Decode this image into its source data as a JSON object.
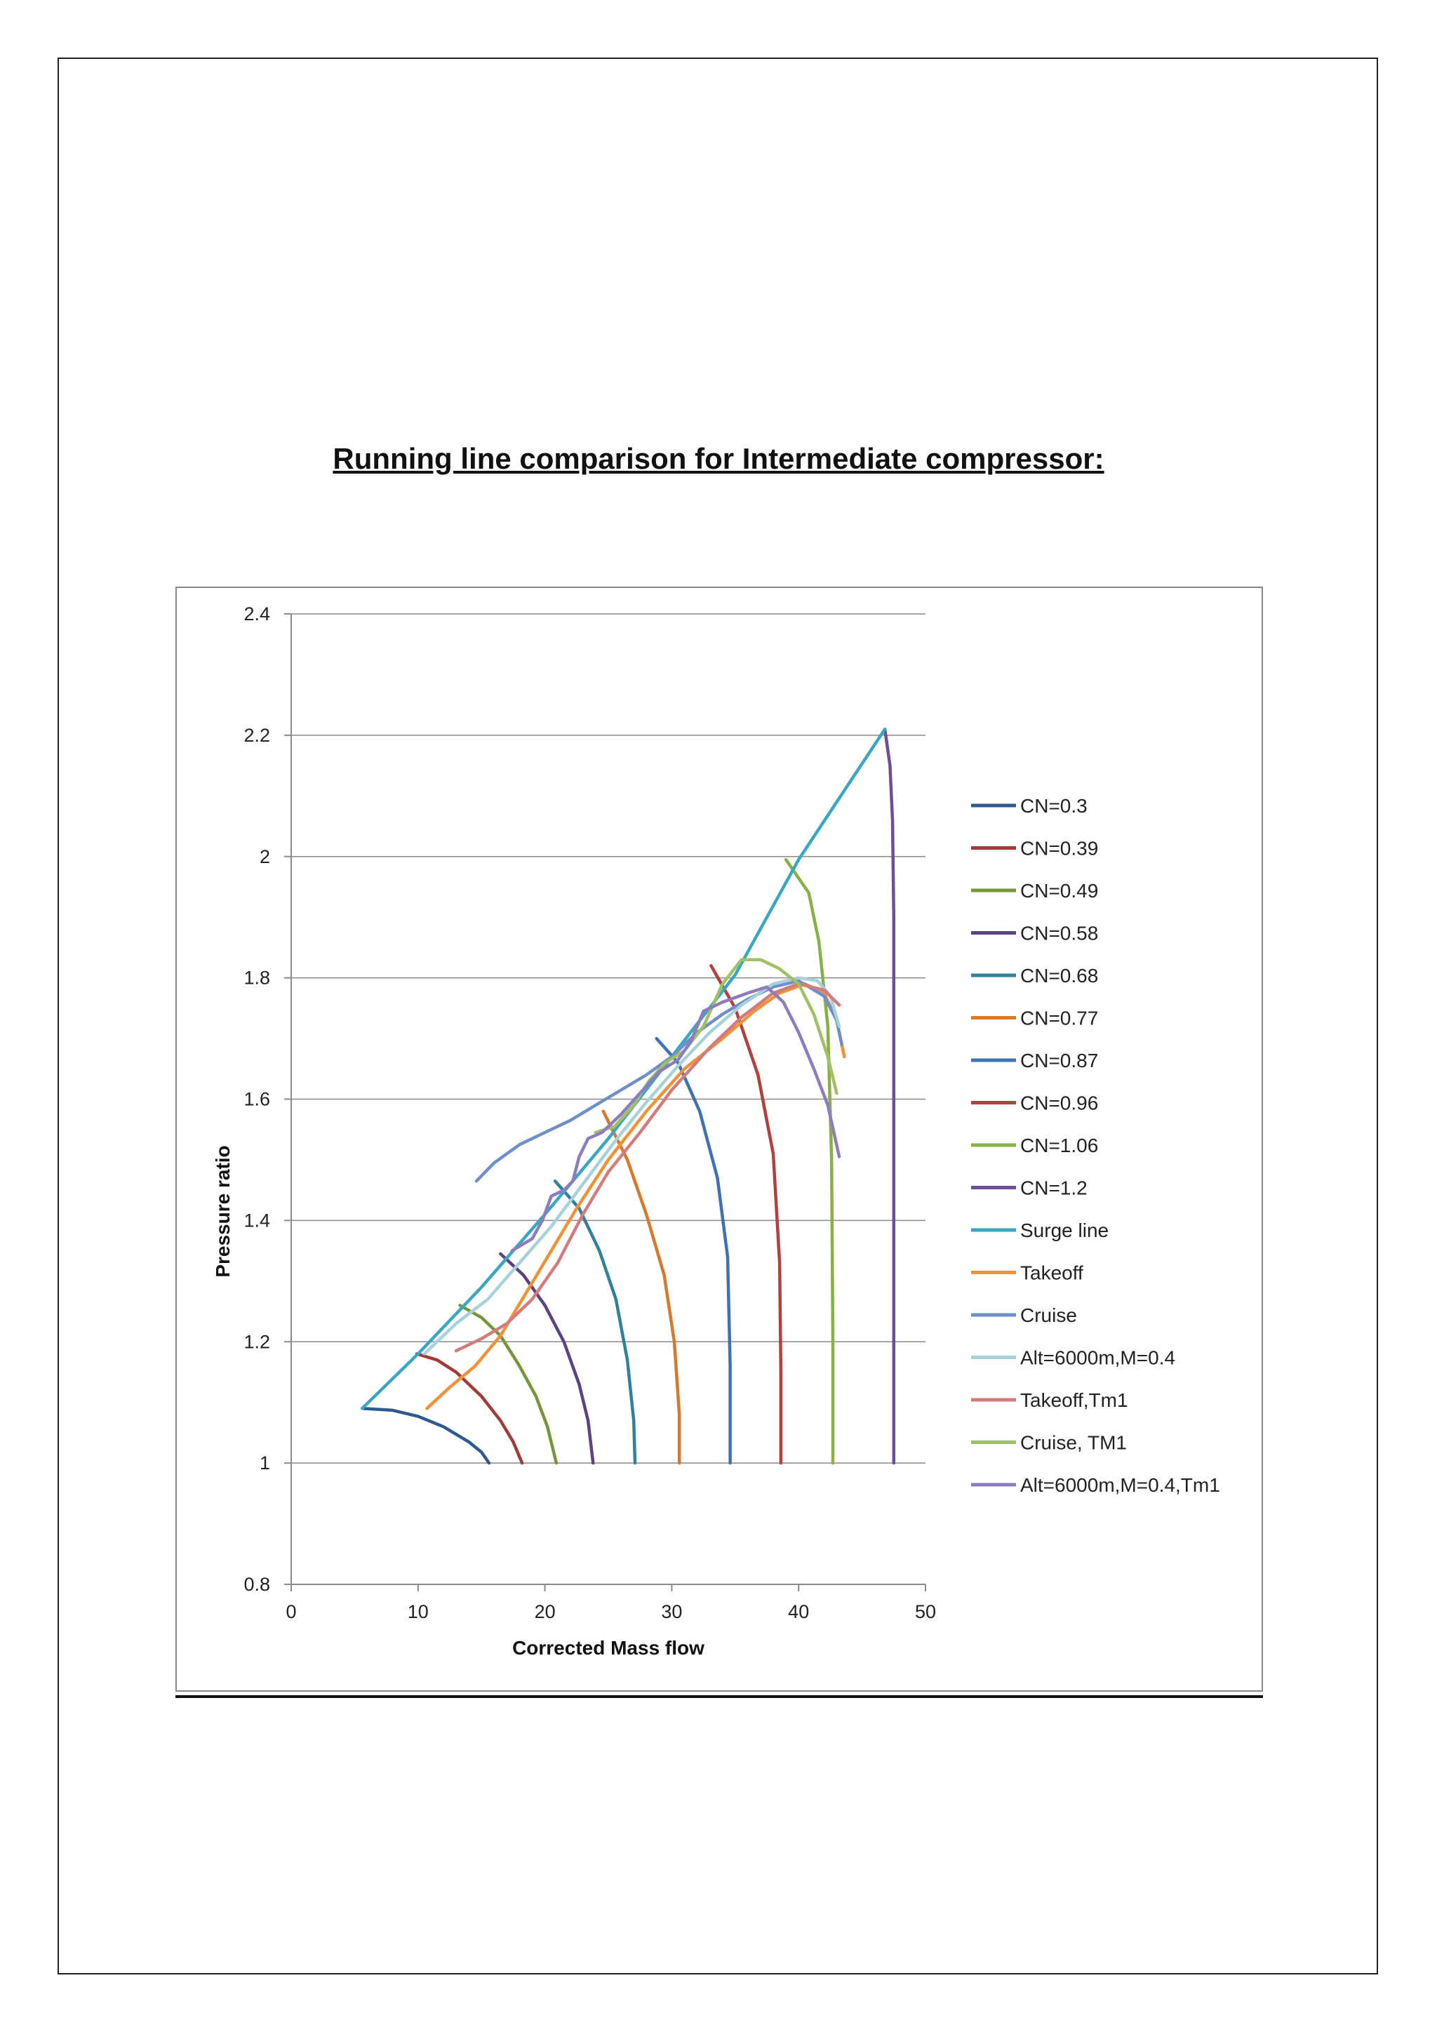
{
  "page": {
    "title": "Running line comparison for Intermediate compressor:"
  },
  "chart_data": {
    "type": "line",
    "title": "",
    "xlabel": "Corrected Mass flow",
    "ylabel": "Pressure ratio",
    "xlim": [
      0,
      50
    ],
    "ylim": [
      0.8,
      2.4
    ],
    "xticks": [
      0,
      10,
      20,
      30,
      40,
      50
    ],
    "yticks": [
      0.8,
      1,
      1.2,
      1.4,
      1.6,
      1.8,
      2,
      2.2,
      2.4
    ],
    "ytick_labels": [
      "0.8",
      "1",
      "1.2",
      "1.4",
      "1.6",
      "1.8",
      "2",
      "2.2",
      "2.4"
    ],
    "grid": "horizontal",
    "legend_position": "right",
    "series": [
      {
        "name": "CN=0.3",
        "color": "#2E5B8C",
        "points": [
          [
            5.6,
            1.09
          ],
          [
            8,
            1.087
          ],
          [
            10,
            1.077
          ],
          [
            12,
            1.06
          ],
          [
            14,
            1.035
          ],
          [
            15,
            1.018
          ],
          [
            15.6,
            1.0
          ]
        ]
      },
      {
        "name": "CN=0.39",
        "color": "#A23A37",
        "points": [
          [
            9.9,
            1.18
          ],
          [
            11.5,
            1.17
          ],
          [
            13,
            1.15
          ],
          [
            15,
            1.11
          ],
          [
            16.5,
            1.07
          ],
          [
            17.5,
            1.035
          ],
          [
            18.2,
            1.0
          ]
        ]
      },
      {
        "name": "CN=0.49",
        "color": "#76963A",
        "points": [
          [
            13.3,
            1.26
          ],
          [
            15,
            1.24
          ],
          [
            16.5,
            1.21
          ],
          [
            18,
            1.16
          ],
          [
            19.3,
            1.11
          ],
          [
            20.2,
            1.06
          ],
          [
            20.9,
            1.0
          ]
        ]
      },
      {
        "name": "CN=0.58",
        "color": "#5B4480",
        "points": [
          [
            16.5,
            1.345
          ],
          [
            18.3,
            1.31
          ],
          [
            20,
            1.26
          ],
          [
            21.5,
            1.2
          ],
          [
            22.7,
            1.13
          ],
          [
            23.4,
            1.07
          ],
          [
            23.8,
            1.0
          ]
        ]
      },
      {
        "name": "CN=0.68",
        "color": "#31819A",
        "points": [
          [
            20.8,
            1.465
          ],
          [
            22.7,
            1.42
          ],
          [
            24.3,
            1.35
          ],
          [
            25.6,
            1.27
          ],
          [
            26.5,
            1.17
          ],
          [
            27,
            1.07
          ],
          [
            27.1,
            1.0
          ]
        ]
      },
      {
        "name": "CN=0.77",
        "color": "#D5792D",
        "points": [
          [
            24.6,
            1.58
          ],
          [
            26.5,
            1.5
          ],
          [
            28,
            1.41
          ],
          [
            29.4,
            1.31
          ],
          [
            30.2,
            1.2
          ],
          [
            30.6,
            1.08
          ],
          [
            30.6,
            1.0
          ]
        ]
      },
      {
        "name": "CN=0.87",
        "color": "#3F72B5",
        "points": [
          [
            28.8,
            1.7
          ],
          [
            30.5,
            1.66
          ],
          [
            32.2,
            1.58
          ],
          [
            33.6,
            1.47
          ],
          [
            34.4,
            1.34
          ],
          [
            34.6,
            1.16
          ],
          [
            34.6,
            1.0
          ]
        ]
      },
      {
        "name": "CN=0.96",
        "color": "#B3403D",
        "points": [
          [
            33.1,
            1.82
          ],
          [
            35,
            1.75
          ],
          [
            36.8,
            1.64
          ],
          [
            38,
            1.51
          ],
          [
            38.5,
            1.33
          ],
          [
            38.6,
            1.15
          ],
          [
            38.6,
            1.0
          ]
        ]
      },
      {
        "name": "CN=1.06",
        "color": "#88B046",
        "points": [
          [
            39,
            1.995
          ],
          [
            40.8,
            1.94
          ],
          [
            41.6,
            1.86
          ],
          [
            42.3,
            1.72
          ],
          [
            42.6,
            1.5
          ],
          [
            42.7,
            1.2
          ],
          [
            42.7,
            1.0
          ]
        ]
      },
      {
        "name": "CN=1.2",
        "color": "#6C4F96",
        "points": [
          [
            46.8,
            2.21
          ],
          [
            47.2,
            2.15
          ],
          [
            47.4,
            2.06
          ],
          [
            47.5,
            1.9
          ],
          [
            47.5,
            1.5
          ],
          [
            47.5,
            1.0
          ]
        ]
      },
      {
        "name": "Surge line",
        "color": "#3AA6C2",
        "points": [
          [
            5.6,
            1.09
          ],
          [
            10,
            1.18
          ],
          [
            15,
            1.29
          ],
          [
            20,
            1.41
          ],
          [
            25,
            1.535
          ],
          [
            30,
            1.67
          ],
          [
            35,
            1.805
          ],
          [
            40,
            1.995
          ],
          [
            46.8,
            2.21
          ]
        ]
      },
      {
        "name": "Takeoff",
        "color": "#F09237",
        "points": [
          [
            10.7,
            1.09
          ],
          [
            12.5,
            1.125
          ],
          [
            14.5,
            1.16
          ],
          [
            16.5,
            1.21
          ],
          [
            18.5,
            1.28
          ],
          [
            20.5,
            1.35
          ],
          [
            22.5,
            1.42
          ],
          [
            25,
            1.5
          ],
          [
            28,
            1.58
          ],
          [
            31,
            1.65
          ],
          [
            34,
            1.7
          ],
          [
            36.5,
            1.745
          ],
          [
            38.5,
            1.775
          ],
          [
            40.5,
            1.79
          ],
          [
            42,
            1.775
          ],
          [
            43,
            1.73
          ],
          [
            43.6,
            1.67
          ]
        ]
      },
      {
        "name": "Cruise",
        "color": "#6F8FC8",
        "points": [
          [
            14.6,
            1.465
          ],
          [
            16,
            1.495
          ],
          [
            18,
            1.525
          ],
          [
            20,
            1.545
          ],
          [
            22,
            1.565
          ],
          [
            24,
            1.59
          ],
          [
            26,
            1.615
          ],
          [
            28,
            1.64
          ],
          [
            30,
            1.67
          ],
          [
            32,
            1.71
          ],
          [
            34,
            1.74
          ],
          [
            36,
            1.765
          ],
          [
            38,
            1.785
          ],
          [
            40,
            1.795
          ],
          [
            42,
            1.77
          ],
          [
            43,
            1.73
          ],
          [
            43.4,
            1.69
          ]
        ]
      },
      {
        "name": "Alt=6000m,M=0.4",
        "color": "#A8D1DC",
        "points": [
          [
            10.5,
            1.18
          ],
          [
            13,
            1.23
          ],
          [
            15.5,
            1.27
          ],
          [
            18,
            1.33
          ],
          [
            20.5,
            1.39
          ],
          [
            23,
            1.46
          ],
          [
            25.5,
            1.53
          ],
          [
            28,
            1.595
          ],
          [
            30.5,
            1.655
          ],
          [
            33,
            1.71
          ],
          [
            35.5,
            1.755
          ],
          [
            38,
            1.79
          ],
          [
            40,
            1.8
          ],
          [
            41.5,
            1.795
          ],
          [
            42.5,
            1.77
          ],
          [
            43.2,
            1.72
          ]
        ]
      },
      {
        "name": "Takeoff,Tm1",
        "color": "#D27C7E",
        "points": [
          [
            13,
            1.185
          ],
          [
            15,
            1.205
          ],
          [
            17,
            1.23
          ],
          [
            19,
            1.27
          ],
          [
            21,
            1.33
          ],
          [
            23,
            1.41
          ],
          [
            25,
            1.48
          ],
          [
            27.5,
            1.545
          ],
          [
            30,
            1.615
          ],
          [
            33,
            1.685
          ],
          [
            35.5,
            1.735
          ],
          [
            38,
            1.775
          ],
          [
            40,
            1.79
          ],
          [
            42,
            1.78
          ],
          [
            43.2,
            1.755
          ]
        ]
      },
      {
        "name": "Cruise, TM1",
        "color": "#9FC064",
        "points": [
          [
            24,
            1.545
          ],
          [
            25.5,
            1.555
          ],
          [
            27,
            1.59
          ],
          [
            28.2,
            1.63
          ],
          [
            29.5,
            1.66
          ],
          [
            31,
            1.68
          ],
          [
            32.5,
            1.72
          ],
          [
            34,
            1.79
          ],
          [
            35.5,
            1.83
          ],
          [
            37,
            1.83
          ],
          [
            38.5,
            1.815
          ],
          [
            40,
            1.79
          ],
          [
            41.2,
            1.74
          ],
          [
            42.3,
            1.67
          ],
          [
            43,
            1.61
          ]
        ]
      },
      {
        "name": "Alt=6000m,M=0.4,Tm1",
        "color": "#8E7DBD",
        "points": [
          [
            17.4,
            1.35
          ],
          [
            19,
            1.37
          ],
          [
            19.8,
            1.4
          ],
          [
            20.5,
            1.44
          ],
          [
            21.5,
            1.45
          ],
          [
            22.2,
            1.465
          ],
          [
            22.7,
            1.505
          ],
          [
            23.4,
            1.535
          ],
          [
            24.5,
            1.545
          ],
          [
            26,
            1.575
          ],
          [
            27.5,
            1.61
          ],
          [
            29,
            1.645
          ],
          [
            30.5,
            1.665
          ],
          [
            31.5,
            1.695
          ],
          [
            32.5,
            1.745
          ],
          [
            34,
            1.76
          ],
          [
            36,
            1.775
          ],
          [
            37.5,
            1.785
          ],
          [
            38.8,
            1.76
          ],
          [
            40,
            1.71
          ],
          [
            41.2,
            1.65
          ],
          [
            42.3,
            1.59
          ],
          [
            43.2,
            1.505
          ]
        ]
      }
    ]
  }
}
